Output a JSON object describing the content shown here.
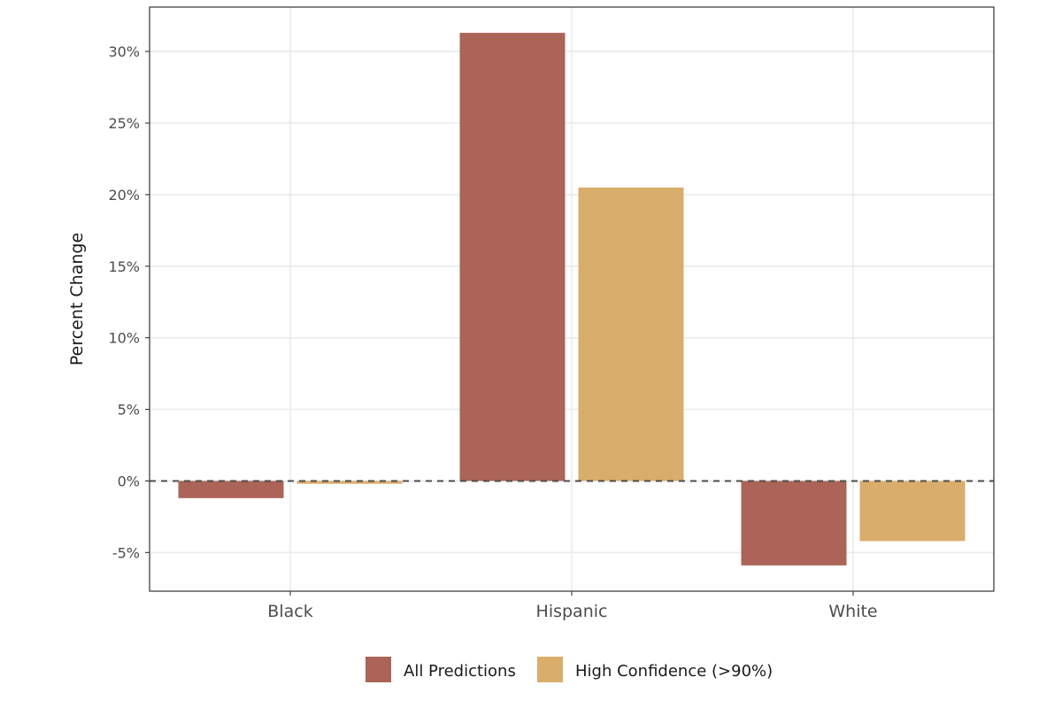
{
  "chart_data": {
    "type": "bar",
    "ylabel": "Percent Change",
    "xlabel": "",
    "categories": [
      "Black",
      "Hispanic",
      "White"
    ],
    "series": [
      {
        "name": "All Predictions",
        "color": "#ab6457",
        "values": [
          -1.2,
          31.3,
          -5.9
        ]
      },
      {
        "name": "High Confidence (>90%)",
        "color": "#d9ad6b",
        "values": [
          -0.2,
          20.5,
          -4.2
        ]
      }
    ],
    "ylim": [
      -7.7,
      33.1
    ],
    "yticks": [
      -5,
      0,
      5,
      10,
      15,
      20,
      25,
      30
    ],
    "ytick_labels": [
      "-5%",
      "0%",
      "5%",
      "10%",
      "15%",
      "20%",
      "25%",
      "30%"
    ],
    "reference_line": {
      "y": 0,
      "style": "dashed"
    },
    "grid": true,
    "legend_position": "bottom"
  }
}
